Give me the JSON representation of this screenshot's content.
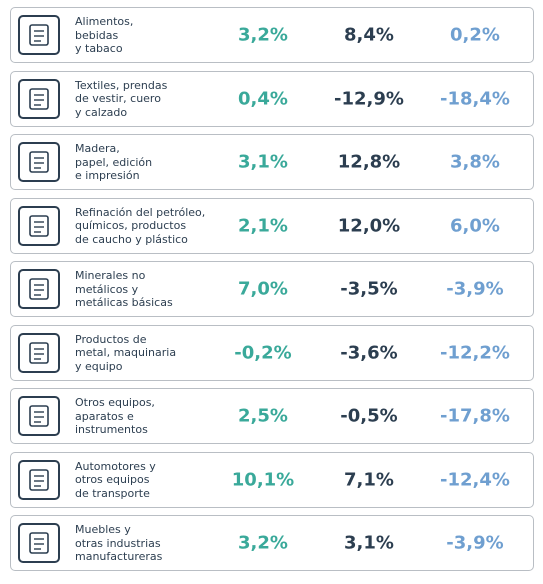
{
  "table": {
    "rows": [
      [
        "Alimentos,\nbebidas\ny tabaco",
        "3,2%",
        "8,4%",
        "0,2%"
      ],
      [
        "Textiles, prendas\nde vestir, cuero\ny calzado",
        "0,4%",
        "-12,9%",
        "-18,4%"
      ],
      [
        "Madera,\npapel, edición\ne impresión",
        "3,1%",
        "12,8%",
        "3,8%"
      ],
      [
        "Refinación del petróleo,\nquímicos, productos\nde caucho y plástico",
        "2,1%",
        "12,0%",
        "6,0%"
      ],
      [
        "Minerales no\nmetálicos y\nmetálicas básicas",
        "7,0%",
        "-3,5%",
        "-3,9%"
      ],
      [
        "Productos de\nmetal, maquinaria\ny equipo",
        "-0,2%",
        "-3,6%",
        "-12,2%"
      ],
      [
        "Otros equipos,\naparatos e\ninstrumentos",
        "2,5%",
        "-0,5%",
        "-17,8%"
      ],
      [
        "Automotores y\notros equipos\nde transporte",
        "10,1%",
        "7,1%",
        "-12,4%"
      ],
      [
        "Muebles y\notras industrias\nmanufactureras",
        "3,2%",
        "3,1%",
        "-3,9%"
      ]
    ]
  }
}
